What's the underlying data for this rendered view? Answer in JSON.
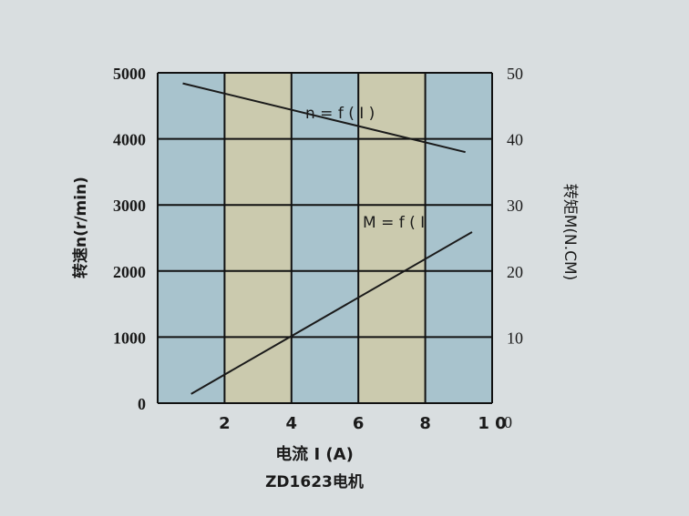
{
  "chart_data": {
    "type": "line",
    "title": "ZD1623电机",
    "xlabel": "电流 I (A)",
    "ylabel": "转速n(r/min)",
    "y2label": "转矩M(N.CM)",
    "xlim": [
      0,
      10
    ],
    "ylim": [
      0,
      5000
    ],
    "y2lim": [
      0,
      50
    ],
    "xticks": [
      2,
      4,
      6,
      8,
      10
    ],
    "xtick_labels": [
      "2",
      "4",
      "6",
      "8",
      "1 0"
    ],
    "yticks": [
      0,
      1000,
      2000,
      3000,
      4000,
      5000
    ],
    "ytick_labels": [
      "0",
      "1000",
      "2000",
      "3000",
      "4000",
      "5000"
    ],
    "y2ticks": [
      0,
      10,
      20,
      30,
      40,
      50
    ],
    "y2tick_labels": [
      "0",
      "10",
      "20",
      "30",
      "40",
      "50"
    ],
    "grid": true,
    "column_colors": [
      "#a8c3cd",
      "#cbcaae"
    ],
    "series": [
      {
        "name": "n = f ( I )",
        "axis": "left",
        "x": [
          0.75,
          9.2
        ],
        "y": [
          4840,
          3800
        ]
      },
      {
        "name": "M = f ( I",
        "axis": "right",
        "x": [
          1.0,
          9.4
        ],
        "y": [
          1.4,
          25.9
        ]
      }
    ]
  }
}
